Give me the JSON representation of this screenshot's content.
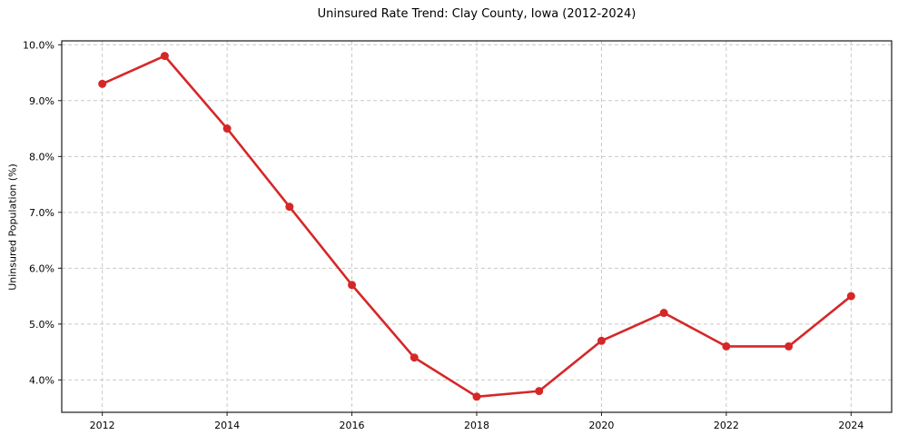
{
  "chart_data": {
    "type": "line",
    "title": "Uninsured Rate Trend: Clay County, Iowa (2012-2024)",
    "xlabel": "",
    "ylabel": "Uninsured Population (%)",
    "series": [
      {
        "x": [
          2012,
          2013,
          2014,
          2015,
          2016,
          2017,
          2018,
          2019,
          2020,
          2021,
          2022,
          2023,
          2024
        ],
        "values": [
          9.3,
          9.8,
          8.5,
          7.1,
          5.7,
          4.4,
          3.7,
          3.8,
          4.7,
          5.2,
          4.6,
          4.6,
          5.5
        ]
      }
    ],
    "xlim": [
      2011.35,
      2024.65
    ],
    "ylim": [
      3.42,
      10.07
    ],
    "xticks": {
      "values": [
        2012,
        2014,
        2016,
        2018,
        2020,
        2022,
        2024
      ],
      "labels": [
        "2012",
        "2014",
        "2016",
        "2018",
        "2020",
        "2022",
        "2024"
      ]
    },
    "yticks": {
      "values": [
        4,
        5,
        6,
        7,
        8,
        9,
        10
      ],
      "labels": [
        "4.0%",
        "5.0%",
        "6.0%",
        "7.0%",
        "8.0%",
        "9.0%",
        "10.0%"
      ]
    },
    "grid": true,
    "grid_style": "dashed",
    "legend": "none",
    "marker": "circle",
    "colors": {
      "line": "#d62728",
      "grid": "#c9c9c9",
      "frame": "#1a1a1a",
      "text": "#000000",
      "background": "#ffffff"
    }
  }
}
